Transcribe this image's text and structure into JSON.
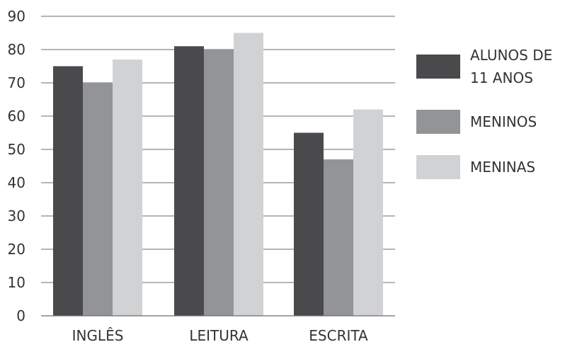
{
  "chart_data": {
    "type": "bar",
    "title": "",
    "xlabel": "",
    "ylabel": "",
    "categories": [
      "INGLÊS",
      "LEITURA",
      "ESCRITA"
    ],
    "series": [
      {
        "name": "ALUNOS DE 11 ANOS",
        "values": [
          75,
          81,
          55
        ],
        "color": "#4a4a4c"
      },
      {
        "name": "MENINOS",
        "values": [
          70,
          80,
          47
        ],
        "color": "#939496"
      },
      {
        "name": "MENINAS",
        "values": [
          77,
          85,
          62
        ],
        "color": "#d1d2d4"
      }
    ],
    "legend_lines": [
      [
        "ALUNOS DE",
        "11 ANOS"
      ],
      [
        "MENINOS"
      ],
      [
        "MENINAS"
      ]
    ],
    "ylim": [
      0,
      90
    ],
    "yticks": [
      0,
      10,
      20,
      30,
      40,
      50,
      60,
      70,
      80,
      90
    ],
    "grid": true,
    "legend_position": "right"
  }
}
